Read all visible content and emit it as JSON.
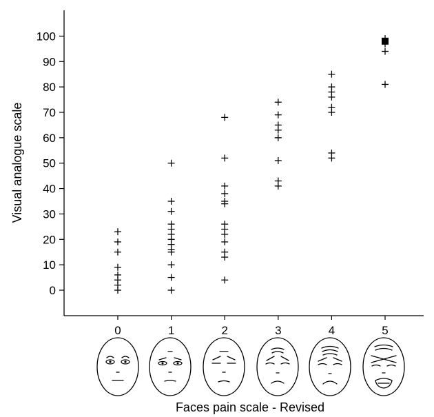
{
  "chart_data": {
    "type": "scatter",
    "title": "",
    "xlabel": "Faces pain scale - Revised",
    "ylabel": "Visual analogue scale",
    "xlim": [
      -1,
      6.2
    ],
    "ylim": [
      -10,
      108
    ],
    "xticks": [
      "0",
      "1",
      "2",
      "3",
      "4",
      "5"
    ],
    "yticks": [
      "0",
      "10",
      "20",
      "30",
      "40",
      "50",
      "60",
      "70",
      "80",
      "90",
      "100"
    ],
    "grid": false,
    "legend": "none",
    "colors": {
      "marker": "#000000"
    },
    "points": [
      {
        "x": 0,
        "y": 23
      },
      {
        "x": 0,
        "y": 19
      },
      {
        "x": 0,
        "y": 15
      },
      {
        "x": 0,
        "y": 9
      },
      {
        "x": 0,
        "y": 6
      },
      {
        "x": 0,
        "y": 4
      },
      {
        "x": 0,
        "y": 2
      },
      {
        "x": 0,
        "y": 0
      },
      {
        "x": 1,
        "y": 50
      },
      {
        "x": 1,
        "y": 35
      },
      {
        "x": 1,
        "y": 31
      },
      {
        "x": 1,
        "y": 26
      },
      {
        "x": 1,
        "y": 24
      },
      {
        "x": 1,
        "y": 22
      },
      {
        "x": 1,
        "y": 20
      },
      {
        "x": 1,
        "y": 18
      },
      {
        "x": 1,
        "y": 16
      },
      {
        "x": 1,
        "y": 15
      },
      {
        "x": 1,
        "y": 10
      },
      {
        "x": 1,
        "y": 5
      },
      {
        "x": 1,
        "y": 0
      },
      {
        "x": 2,
        "y": 68
      },
      {
        "x": 2,
        "y": 52
      },
      {
        "x": 2,
        "y": 41
      },
      {
        "x": 2,
        "y": 38
      },
      {
        "x": 2,
        "y": 35
      },
      {
        "x": 2,
        "y": 34
      },
      {
        "x": 2,
        "y": 26
      },
      {
        "x": 2,
        "y": 24
      },
      {
        "x": 2,
        "y": 22
      },
      {
        "x": 2,
        "y": 19
      },
      {
        "x": 2,
        "y": 15
      },
      {
        "x": 2,
        "y": 13
      },
      {
        "x": 2,
        "y": 4
      },
      {
        "x": 3,
        "y": 74
      },
      {
        "x": 3,
        "y": 69
      },
      {
        "x": 3,
        "y": 65
      },
      {
        "x": 3,
        "y": 63
      },
      {
        "x": 3,
        "y": 60
      },
      {
        "x": 3,
        "y": 51
      },
      {
        "x": 3,
        "y": 43
      },
      {
        "x": 3,
        "y": 41
      },
      {
        "x": 4,
        "y": 85
      },
      {
        "x": 4,
        "y": 80
      },
      {
        "x": 4,
        "y": 78
      },
      {
        "x": 4,
        "y": 76
      },
      {
        "x": 4,
        "y": 72
      },
      {
        "x": 4,
        "y": 70
      },
      {
        "x": 4,
        "y": 54
      },
      {
        "x": 4,
        "y": 52
      },
      {
        "x": 5,
        "y": 99
      },
      {
        "x": 5,
        "y": 97
      },
      {
        "x": 5,
        "y": 94
      },
      {
        "x": 5,
        "y": 81
      }
    ],
    "highlight": [
      {
        "x": 5,
        "y": 98,
        "marker": "square"
      }
    ],
    "faces_under_axis": [
      "face-0",
      "face-1",
      "face-2",
      "face-3",
      "face-4",
      "face-5"
    ]
  }
}
